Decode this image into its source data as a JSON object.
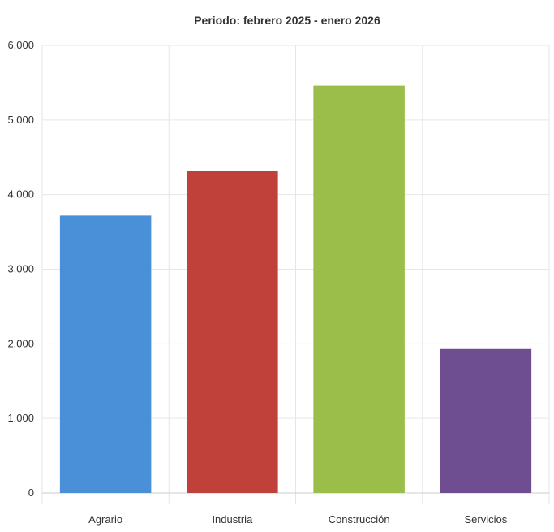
{
  "chart_data": {
    "type": "bar",
    "title": "Periodo: febrero 2025 - enero 2026",
    "xlabel": "",
    "ylabel": "",
    "categories": [
      "Agrario",
      "Industria",
      "Construcción",
      "Servicios"
    ],
    "values": [
      3720,
      4320,
      5460,
      1930
    ],
    "colors": [
      "#4A90D9",
      "#C0403A",
      "#9BBE4A",
      "#6E4E91"
    ],
    "ylim": [
      0,
      6000
    ],
    "yticks": [
      0,
      1000,
      2000,
      3000,
      4000,
      5000,
      6000
    ],
    "ytick_labels": [
      "0",
      "1.000",
      "2.000",
      "3.000",
      "4.000",
      "5.000",
      "6.000"
    ],
    "grid": true,
    "legend": "none"
  }
}
